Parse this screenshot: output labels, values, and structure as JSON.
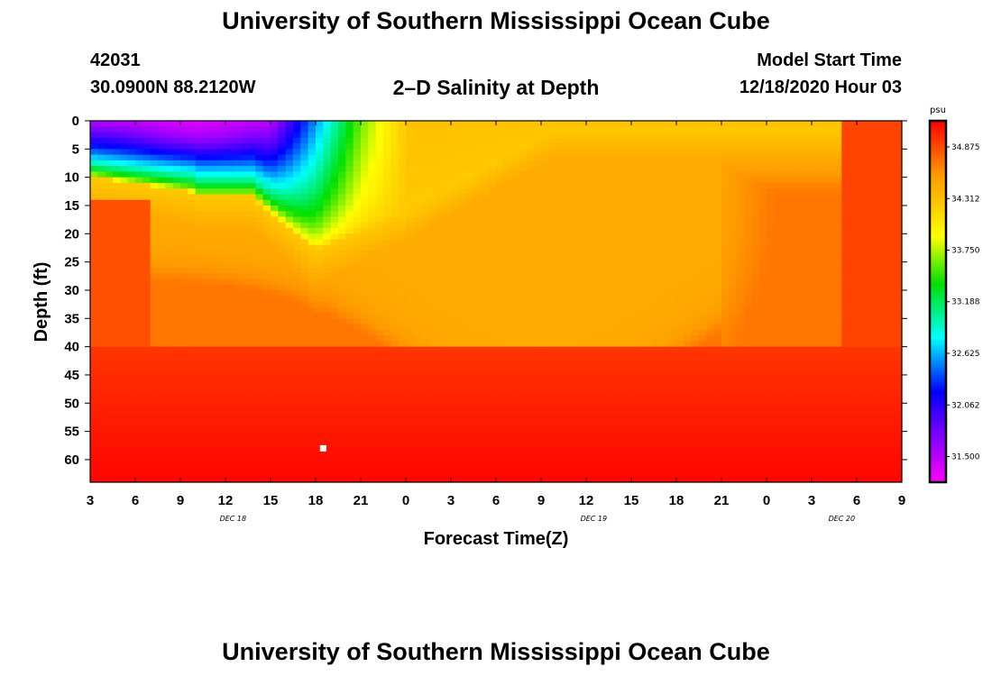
{
  "header": {
    "title": "University of Southern Mississippi Ocean Cube",
    "station_id": "42031",
    "coordinates": "30.0900N 88.2120W",
    "plot_title": "2–D Salinity at Depth",
    "model_start_label": "Model Start Time",
    "model_start_value": "12/18/2020 Hour 03"
  },
  "footer": {
    "title": "University of Southern Mississippi Ocean Cube"
  },
  "chart_data": {
    "type": "heatmap",
    "title": "2–D Salinity at Depth",
    "xlabel": "Forecast Time(Z)",
    "ylabel": "Depth (ft)",
    "units": "psu",
    "x_start_hour": 3,
    "x_end_hour": 57,
    "x_tick_labels": [
      "3",
      "6",
      "9",
      "12",
      "15",
      "18",
      "21",
      "0",
      "3",
      "6",
      "9",
      "12",
      "15",
      "18",
      "21",
      "0",
      "3",
      "6",
      "9"
    ],
    "date_labels": [
      {
        "text": "DEC 18",
        "hour": 12.5
      },
      {
        "text": "DEC 19",
        "hour": 36.5
      },
      {
        "text": "DEC 20",
        "hour": 53
      }
    ],
    "ylim": [
      0,
      64
    ],
    "y_ticks": [
      0,
      5,
      10,
      15,
      20,
      25,
      30,
      35,
      40,
      45,
      50,
      55,
      60
    ],
    "colorbar": {
      "range": [
        31.22,
        35.16
      ],
      "tick_values": [
        34.875,
        34.312,
        33.75,
        33.188,
        32.625,
        32.062,
        31.5
      ],
      "tick_labels": [
        "34.875",
        "34.312",
        "33.750",
        "33.188",
        "32.625",
        "32.062",
        "31.500"
      ]
    },
    "marker": {
      "hour": 18.5,
      "depth": 58
    }
  }
}
